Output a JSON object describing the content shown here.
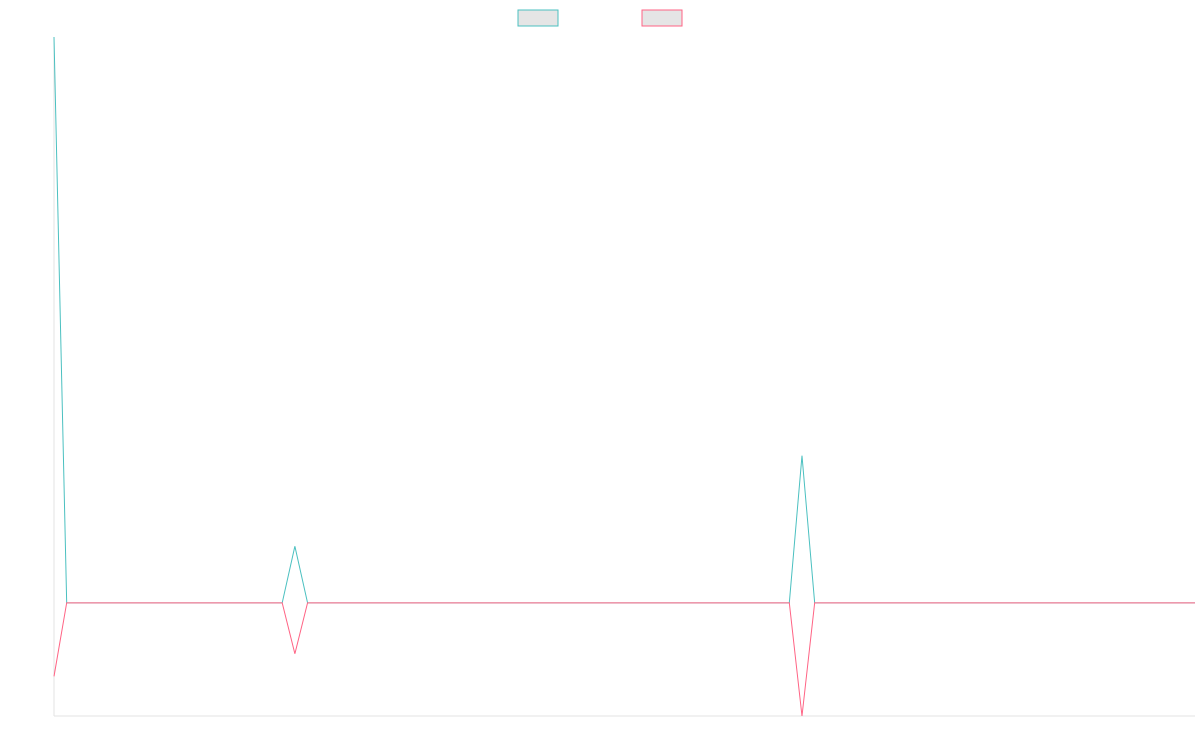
{
  "chart_data": {
    "type": "line",
    "title": "",
    "xlabel": "",
    "ylabel": "",
    "x": [
      0,
      1,
      2,
      3,
      4,
      5,
      6,
      7,
      8,
      9,
      10,
      11,
      12,
      13,
      14,
      15,
      16,
      17,
      18,
      19,
      20,
      21,
      22,
      23,
      24,
      25,
      26,
      27,
      28,
      29,
      30,
      31,
      32,
      33,
      34,
      35,
      36,
      37,
      38,
      39,
      40,
      41,
      42,
      43,
      44,
      45,
      46,
      47,
      48,
      49,
      50,
      51,
      52,
      53,
      54,
      55,
      56,
      57,
      58,
      59,
      60,
      61,
      62,
      63,
      64,
      65,
      66,
      67,
      68,
      69,
      70,
      71,
      72,
      73,
      74,
      75,
      76,
      77,
      78,
      79,
      80,
      81,
      82,
      83,
      84,
      85,
      86,
      87,
      88,
      89,
      90
    ],
    "xlim": [
      0,
      90
    ],
    "ylim": [
      -2,
      10
    ],
    "grid": false,
    "legend_position": "top-center",
    "series": [
      {
        "color": "#4bc0c0",
        "fill": "#e5e5e5",
        "values": [
          10,
          0,
          0,
          0,
          0,
          0,
          0,
          0,
          0,
          0,
          0,
          0,
          0,
          0,
          0,
          0,
          0,
          0,
          0,
          1,
          0,
          0,
          0,
          0,
          0,
          0,
          0,
          0,
          0,
          0,
          0,
          0,
          0,
          0,
          0,
          0,
          0,
          0,
          0,
          0,
          0,
          0,
          0,
          0,
          0,
          0,
          0,
          0,
          0,
          0,
          0,
          0,
          0,
          0,
          0,
          0,
          0,
          0,
          0,
          2.6,
          0,
          0,
          0,
          0,
          0,
          0,
          0,
          0,
          0,
          0,
          0,
          0,
          0,
          0,
          0,
          0,
          0,
          0,
          0,
          0,
          0,
          0,
          0,
          0,
          0,
          0,
          0,
          0,
          0,
          0,
          0
        ]
      },
      {
        "color": "#ff6384",
        "fill": "#e5e5e5",
        "values": [
          -1.3,
          0,
          0,
          0,
          0,
          0,
          0,
          0,
          0,
          0,
          0,
          0,
          0,
          0,
          0,
          0,
          0,
          0,
          0,
          -0.9,
          0,
          0,
          0,
          0,
          0,
          0,
          0,
          0,
          0,
          0,
          0,
          0,
          0,
          0,
          0,
          0,
          0,
          0,
          0,
          0,
          0,
          0,
          0,
          0,
          0,
          0,
          0,
          0,
          0,
          0,
          0,
          0,
          0,
          0,
          0,
          0,
          0,
          0,
          0,
          -2,
          0,
          0,
          0,
          0,
          0,
          0,
          0,
          0,
          0,
          0,
          0,
          0,
          0,
          0,
          0,
          0,
          0,
          0,
          0,
          0,
          0,
          0,
          0,
          0,
          0,
          0,
          0,
          0,
          0,
          0,
          0
        ]
      }
    ]
  }
}
